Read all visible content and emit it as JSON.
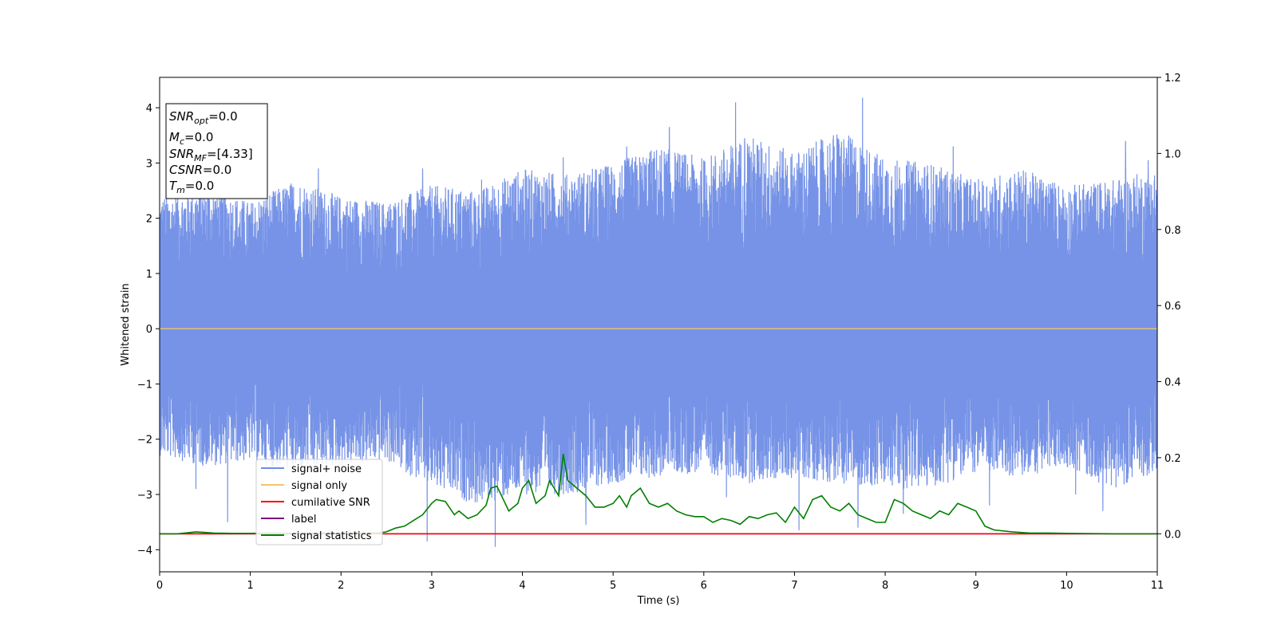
{
  "chart_data": {
    "type": "line",
    "xlabel": "Time (s)",
    "ylabel": "Whitened strain",
    "xlim": [
      0,
      11
    ],
    "ylim": [
      -4.4,
      4.55
    ],
    "y2lim": [
      -0.1,
      1.2
    ],
    "x_ticks": [
      0,
      1,
      2,
      3,
      4,
      5,
      6,
      7,
      8,
      9,
      10,
      11
    ],
    "y_ticks": [
      -4,
      -3,
      -2,
      -1,
      0,
      1,
      2,
      3,
      4
    ],
    "y2_ticks": [
      "0.0",
      "0.2",
      "0.4",
      "0.6",
      "0.8",
      "1.0",
      "1.2"
    ],
    "legend_position": "lower-left",
    "grid": false,
    "annotation": [
      {
        "name": "SNR",
        "sub": "opt",
        "value": "=0.0"
      },
      {
        "name": "M",
        "sub": "c",
        "value": "=0.0"
      },
      {
        "name": "SNR",
        "sub": "MF",
        "value": "=[4.33]"
      },
      {
        "name": "CSNR",
        "sub": "",
        "value": "=0.0"
      },
      {
        "name": "T",
        "sub": "m",
        "value": "=0.0"
      }
    ],
    "series": [
      {
        "name": "signal+ noise",
        "color": "#6f8de6",
        "axis": "left",
        "style": "noise",
        "envelope": {
          "x": [
            0,
            0.5,
            1,
            1.5,
            2,
            2.5,
            3,
            3.5,
            4,
            4.5,
            5,
            5.5,
            6,
            6.5,
            7,
            7.5,
            8,
            8.5,
            9,
            9.5,
            10,
            10.5,
            11
          ],
          "upper": [
            2.4,
            2.6,
            2.3,
            2.7,
            2.4,
            2.3,
            2.6,
            2.5,
            2.9,
            2.8,
            3.0,
            3.3,
            3.1,
            3.5,
            3.2,
            3.6,
            3.1,
            3.0,
            2.7,
            2.9,
            2.6,
            2.7,
            2.9
          ],
          "lower": [
            -2.3,
            -2.5,
            -2.4,
            -2.6,
            -2.5,
            -2.4,
            -2.9,
            -3.2,
            -3.0,
            -3.0,
            -2.8,
            -2.7,
            -2.6,
            -2.8,
            -2.7,
            -2.8,
            -2.9,
            -2.9,
            -2.6,
            -2.7,
            -2.5,
            -2.9,
            -2.6
          ]
        },
        "peaks": [
          {
            "x": 0.75,
            "y": -3.5
          },
          {
            "x": 0.4,
            "y": -2.9
          },
          {
            "x": 1.25,
            "y": -2.6
          },
          {
            "x": 1.75,
            "y": 2.9
          },
          {
            "x": 2.9,
            "y": 2.9
          },
          {
            "x": 2.95,
            "y": -3.85
          },
          {
            "x": 3.7,
            "y": -3.95
          },
          {
            "x": 3.55,
            "y": 2.7
          },
          {
            "x": 4.1,
            "y": 2.8
          },
          {
            "x": 4.45,
            "y": 3.1
          },
          {
            "x": 4.7,
            "y": -3.55
          },
          {
            "x": 5.15,
            "y": 3.3
          },
          {
            "x": 5.62,
            "y": 3.65
          },
          {
            "x": 6.25,
            "y": -3.05
          },
          {
            "x": 6.35,
            "y": 4.1
          },
          {
            "x": 6.45,
            "y": 3.45
          },
          {
            "x": 7.05,
            "y": -3.65
          },
          {
            "x": 7.75,
            "y": 4.18
          },
          {
            "x": 7.7,
            "y": -3.6
          },
          {
            "x": 8.2,
            "y": -3.35
          },
          {
            "x": 8.75,
            "y": 3.3
          },
          {
            "x": 9.15,
            "y": -3.2
          },
          {
            "x": 10.1,
            "y": -3.0
          },
          {
            "x": 10.4,
            "y": -3.3
          },
          {
            "x": 10.65,
            "y": 3.4
          },
          {
            "x": 10.9,
            "y": 3.05
          }
        ]
      },
      {
        "name": "signal only",
        "color": "#f5c36b",
        "axis": "left",
        "x": [
          0,
          11
        ],
        "y": [
          0,
          0
        ]
      },
      {
        "name": "cumilative SNR",
        "color": "#ff0000",
        "axis": "right",
        "x": [
          0,
          11
        ],
        "y": [
          0,
          0
        ]
      },
      {
        "name": "label",
        "color": "#800080",
        "axis": "right",
        "x": [
          0,
          11
        ],
        "y": [
          0,
          0
        ]
      },
      {
        "name": "signal statistics",
        "color": "#008000",
        "axis": "right",
        "x": [
          0,
          0.2,
          0.4,
          0.6,
          0.8,
          1.0,
          1.2,
          1.4,
          1.6,
          1.8,
          2.0,
          2.2,
          2.4,
          2.5,
          2.6,
          2.7,
          2.8,
          2.9,
          3.0,
          3.05,
          3.15,
          3.25,
          3.3,
          3.4,
          3.5,
          3.6,
          3.65,
          3.72,
          3.85,
          3.95,
          4.0,
          4.07,
          4.15,
          4.25,
          4.3,
          4.4,
          4.45,
          4.5,
          4.6,
          4.7,
          4.8,
          4.9,
          5.0,
          5.07,
          5.15,
          5.2,
          5.3,
          5.4,
          5.5,
          5.6,
          5.7,
          5.8,
          5.9,
          6.0,
          6.1,
          6.2,
          6.3,
          6.4,
          6.5,
          6.6,
          6.7,
          6.8,
          6.9,
          6.95,
          7.0,
          7.1,
          7.2,
          7.3,
          7.4,
          7.5,
          7.6,
          7.7,
          7.8,
          7.9,
          8.0,
          8.1,
          8.2,
          8.3,
          8.4,
          8.5,
          8.6,
          8.7,
          8.8,
          8.9,
          9.0,
          9.1,
          9.2,
          9.4,
          9.6,
          9.8,
          10.0,
          10.5,
          11.0
        ],
        "y": [
          0.0,
          0.0,
          0.005,
          0.002,
          0.001,
          0.001,
          0.002,
          0.001,
          0.001,
          0.002,
          0.001,
          0.002,
          0.002,
          0.005,
          0.015,
          0.02,
          0.035,
          0.05,
          0.08,
          0.09,
          0.085,
          0.05,
          0.06,
          0.04,
          0.05,
          0.075,
          0.12,
          0.125,
          0.06,
          0.08,
          0.12,
          0.14,
          0.08,
          0.1,
          0.14,
          0.1,
          0.21,
          0.14,
          0.12,
          0.1,
          0.07,
          0.07,
          0.08,
          0.1,
          0.07,
          0.1,
          0.12,
          0.08,
          0.07,
          0.08,
          0.06,
          0.05,
          0.045,
          0.045,
          0.03,
          0.04,
          0.035,
          0.025,
          0.045,
          0.04,
          0.05,
          0.055,
          0.03,
          0.05,
          0.07,
          0.04,
          0.09,
          0.1,
          0.07,
          0.06,
          0.08,
          0.05,
          0.04,
          0.03,
          0.03,
          0.09,
          0.08,
          0.06,
          0.05,
          0.04,
          0.06,
          0.05,
          0.08,
          0.07,
          0.06,
          0.02,
          0.01,
          0.005,
          0.002,
          0.002,
          0.001,
          0.0,
          0.0
        ]
      }
    ]
  }
}
